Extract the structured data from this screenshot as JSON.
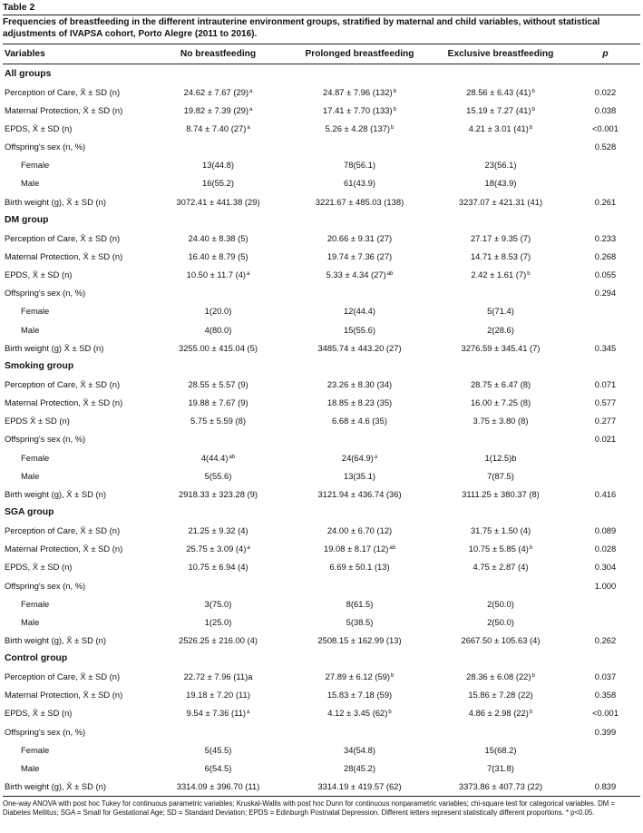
{
  "table_label": "Table 2",
  "caption": "Frequencies of breastfeeding in the different intrauterine environment groups, stratified by maternal and child variables, without statistical adjustments of IVAPSA cohort, Porto Alegre (2011 to 2016).",
  "columns": [
    "Variables",
    "No breastfeeding",
    "Prolonged breastfeeding",
    "Exclusive breastfeeding",
    "p"
  ],
  "rows": [
    {
      "type": "group",
      "label": "All groups"
    },
    {
      "type": "data",
      "label": "Perception of Care, X̄ ± SD (n)",
      "no": "24.62 ± 7.67 (29)",
      "no_sup": "a",
      "prol": "24.87 ± 7.96 (132)",
      "prol_sup": "b",
      "excl": "28.56 ± 6.43 (41)",
      "excl_sup": "b",
      "p": "0.022"
    },
    {
      "type": "data",
      "label": "Maternal Protection, X̄ ± SD (n)",
      "no": "19.82 ± 7.39 (29)",
      "no_sup": "a",
      "prol": "17.41 ± 7.70 (133)",
      "prol_sup": "b",
      "excl": "15.19 ± 7.27 (41)",
      "excl_sup": "b",
      "p": "0.038"
    },
    {
      "type": "data",
      "label": "EPDS, X̄ ± SD (n)",
      "no": "8.74 ± 7.40 (27)",
      "no_sup": "a",
      "prol": "5.26 ± 4.28 (137)",
      "prol_sup": "b",
      "excl": "4.21 ± 3.01 (41)",
      "excl_sup": "b",
      "p": "<0.001"
    },
    {
      "type": "data",
      "label": "Offspring's sex (n, %)",
      "no": "",
      "prol": "",
      "excl": "",
      "p": "0.528"
    },
    {
      "type": "sub",
      "label": "Female",
      "no": "13(44.8)",
      "prol": "78(56.1)",
      "excl": "23(56.1)",
      "p": ""
    },
    {
      "type": "sub",
      "label": "Male",
      "no": "16(55.2)",
      "prol": "61(43.9)",
      "excl": "18(43.9)",
      "p": ""
    },
    {
      "type": "data",
      "label": "Birth weight (g), X̄ ± SD (n)",
      "no": "3072.41 ± 441.38 (29)",
      "prol": "3221.67 ± 485.03 (138)",
      "excl": "3237.07 ± 421.31 (41)",
      "p": "0.261"
    },
    {
      "type": "group",
      "label": "DM group"
    },
    {
      "type": "data",
      "label": "Perception of Care, X̄ ± SD (n)",
      "no": "24.40 ± 8.38 (5)",
      "prol": "20.66 ± 9.31 (27)",
      "excl": "27.17 ± 9.35 (7)",
      "p": "0.233"
    },
    {
      "type": "data",
      "label": "Maternal Protection, X̄ ± SD (n)",
      "no": "16.40 ± 8.79 (5)",
      "prol": "19.74 ± 7.36 (27)",
      "excl": "14.71 ± 8.53 (7)",
      "p": "0.268"
    },
    {
      "type": "data",
      "label": "EPDS, X̄ ± SD (n)",
      "no": "10.50 ± 11.7 (4)",
      "no_sup": "a",
      "prol": "5.33 ± 4.34 (27)",
      "prol_sup": "ab",
      "excl": "2.42 ± 1.61 (7)",
      "excl_sup": "b",
      "p": "0.055"
    },
    {
      "type": "data",
      "label": "Offspring's sex (n, %)",
      "no": "",
      "prol": "",
      "excl": "",
      "p": "0.294"
    },
    {
      "type": "sub",
      "label": "Female",
      "no": "1(20.0)",
      "prol": "12(44.4)",
      "excl": "5(71.4)",
      "p": ""
    },
    {
      "type": "sub",
      "label": "Male",
      "no": "4(80.0)",
      "prol": "15(55.6)",
      "excl": "2(28.6)",
      "p": ""
    },
    {
      "type": "data",
      "label": "Birth weight (g) X̄ ± SD (n)",
      "no": "3255.00 ± 415.04 (5)",
      "prol": "3485.74 ± 443.20 (27)",
      "excl": "3276.59 ± 345.41 (7)",
      "p": "0.345"
    },
    {
      "type": "group",
      "label": "Smoking group"
    },
    {
      "type": "data",
      "label": "Perception of Care, X̄ ± SD (n)",
      "no": "28.55 ± 5.57 (9)",
      "prol": "23.26 ± 8.30 (34)",
      "excl": "28.75 ± 6.47 (8)",
      "p": "0.071"
    },
    {
      "type": "data",
      "label": "Maternal Protection, X̄ ± SD (n)",
      "no": "19.88 ± 7.67 (9)",
      "prol": "18.85 ± 8.23 (35)",
      "excl": "16.00 ± 7.25 (8)",
      "p": "0.577"
    },
    {
      "type": "data",
      "label": "EPDS X̄ ± SD (n)",
      "no": "5.75 ± 5.59 (8)",
      "prol": "6.68 ± 4.6 (35)",
      "excl": "3.75 ± 3.80 (8)",
      "p": "0.277"
    },
    {
      "type": "data",
      "label": "Offspring's sex (n, %)",
      "no": "",
      "prol": "",
      "excl": "",
      "p": "0.021"
    },
    {
      "type": "sub",
      "label": "Female",
      "no": "4(44.4)",
      "no_sup": "ab",
      "prol": "24(64.9)",
      "prol_sup": "a",
      "excl": "1(12.5)b",
      "p": ""
    },
    {
      "type": "sub",
      "label": "Male",
      "no": "5(55.6)",
      "prol": "13(35.1)",
      "excl": "7(87.5)",
      "p": ""
    },
    {
      "type": "data",
      "label": "Birth weight (g), X̄ ± SD (n)",
      "no": "2918.33 ± 323.28 (9)",
      "prol": "3121.94 ± 436.74 (36)",
      "excl": "3111.25 ± 380.37 (8)",
      "p": "0.416"
    },
    {
      "type": "group",
      "label": "SGA group"
    },
    {
      "type": "data",
      "label": "Perception of Care, X̄ ± SD (n)",
      "no": "21.25 ± 9.32 (4)",
      "prol": "24.00 ± 6.70 (12)",
      "excl": "31.75 ± 1.50 (4)",
      "p": "0.089"
    },
    {
      "type": "data",
      "label": "Maternal Protection, X̄ ± SD (n)",
      "no": "25.75 ± 3.09 (4)",
      "no_sup": "a",
      "prol": "19.08 ± 8.17 (12)",
      "prol_sup": "ab",
      "excl": "10.75 ± 5.85 (4)",
      "excl_sup": "b",
      "p": "0.028"
    },
    {
      "type": "data",
      "label": "EPDS, X̄ ± SD (n)",
      "no": "10.75 ± 6.94 (4)",
      "prol": "6.69 ± 50.1 (13)",
      "excl": "4.75 ± 2.87 (4)",
      "p": "0.304"
    },
    {
      "type": "data",
      "label": "Offspring's sex (n, %)",
      "no": "",
      "prol": "",
      "excl": "",
      "p": "1.000"
    },
    {
      "type": "sub",
      "label": "Female",
      "no": "3(75.0)",
      "prol": "8(61.5)",
      "excl": "2(50.0)",
      "p": ""
    },
    {
      "type": "sub",
      "label": "Male",
      "no": "1(25.0)",
      "prol": "5(38.5)",
      "excl": "2(50.0)",
      "p": ""
    },
    {
      "type": "data",
      "label": "Birth weight (g), X̄ ± SD (n)",
      "no": "2526.25 ± 216.00 (4)",
      "prol": "2508.15 ± 162.99 (13)",
      "excl": "2667.50 ± 105.63 (4)",
      "p": "0.262"
    },
    {
      "type": "group",
      "label": "Control group"
    },
    {
      "type": "data",
      "label": "Perception of Care, X̄ ± SD (n)",
      "no": "22.72 ± 7.96 (11)a",
      "prol": "27.89 ± 6.12 (59)",
      "prol_sup": "b",
      "excl": "28.36 ± 6.08 (22)",
      "excl_sup": "b",
      "p": "0.037"
    },
    {
      "type": "data",
      "label": "Maternal Protection, X̄ ± SD (n)",
      "no": "19.18 ± 7.20 (11)",
      "prol": "15.83 ± 7.18 (59)",
      "excl": "15.86 ± 7.28 (22)",
      "p": "0.358"
    },
    {
      "type": "data",
      "label": "EPDS, X̄ ± SD (n)",
      "no": "9.54 ± 7.36 (11)",
      "no_sup": "a",
      "prol": "4.12 ± 3.45 (62)",
      "prol_sup": "b",
      "excl": "4.86 ± 2.98 (22)",
      "excl_sup": "b",
      "p": "<0.001"
    },
    {
      "type": "data",
      "label": "Offspring's sex (n, %)",
      "no": "",
      "prol": "",
      "excl": "",
      "p": "0.399"
    },
    {
      "type": "sub",
      "label": "Female",
      "no": "5(45.5)",
      "prol": "34(54.8)",
      "excl": "15(68.2)",
      "p": ""
    },
    {
      "type": "sub",
      "label": "Male",
      "no": "6(54.5)",
      "prol": "28(45.2)",
      "excl": "7(31.8)",
      "p": ""
    },
    {
      "type": "data",
      "label": "Birth weight (g), X̄ ± SD (n)",
      "no": "3314.09 ± 396.70 (11)",
      "prol": "3314.19 ± 419.57 (62)",
      "excl": "3373.86 ± 407.73 (22)",
      "p": "0.839"
    }
  ],
  "footnote": "One-way ANOVA with post hoc Tukey for continuous parametric variables; Kruskal-Wallis with post hoc Dunn for continuous nonparametric variables; chi-square test for categorical variables. DM = Diabetes Mellitus; SGA = Small for Gestational Age; SD = Standard Deviation; EPDS = Edinburgh Postnatal Depression. Different letters represent statistically different proportions. * p<0.05."
}
